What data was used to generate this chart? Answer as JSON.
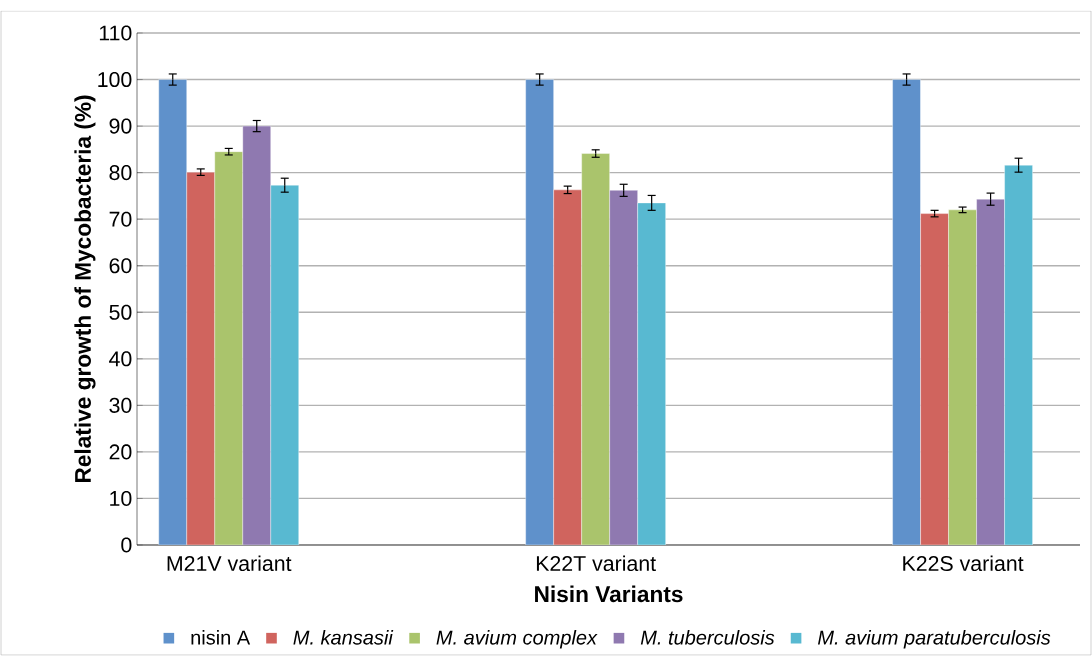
{
  "chart_data": {
    "type": "bar",
    "xlabel": "Nisin Variants",
    "ylabel": "Relative growth of Mycobacteria (%)",
    "categories": [
      "M21V variant",
      "K22T variant",
      "K22S variant"
    ],
    "series": [
      {
        "name": "nisin A",
        "color": "#5f91cb",
        "values": [
          100,
          100,
          100
        ],
        "errors": [
          1.2,
          1.2,
          1.2
        ]
      },
      {
        "name": "*M. kansasii*",
        "color": "#d0645e",
        "values": [
          80.1,
          76.3,
          71.2
        ],
        "errors": [
          0.7,
          0.8,
          0.7
        ]
      },
      {
        "name": "*M. avium complex*",
        "color": "#aac46c",
        "values": [
          84.5,
          84.1,
          72.0
        ],
        "errors": [
          0.7,
          0.8,
          0.6
        ]
      },
      {
        "name": "*M. tuberculosis*",
        "color": "#8f79b0",
        "values": [
          90.0,
          76.2,
          74.3
        ],
        "errors": [
          1.2,
          1.3,
          1.3
        ]
      },
      {
        "name": "*M. avium paratuberculosis*",
        "color": "#58b9d1",
        "values": [
          77.3,
          73.5,
          81.6
        ],
        "errors": [
          1.5,
          1.6,
          1.5
        ]
      }
    ],
    "ylim": [
      0,
      110
    ],
    "yticks": [
      0,
      10,
      20,
      30,
      40,
      50,
      60,
      70,
      80,
      90,
      100,
      110
    ],
    "grid": "y",
    "legend": "bottom"
  }
}
